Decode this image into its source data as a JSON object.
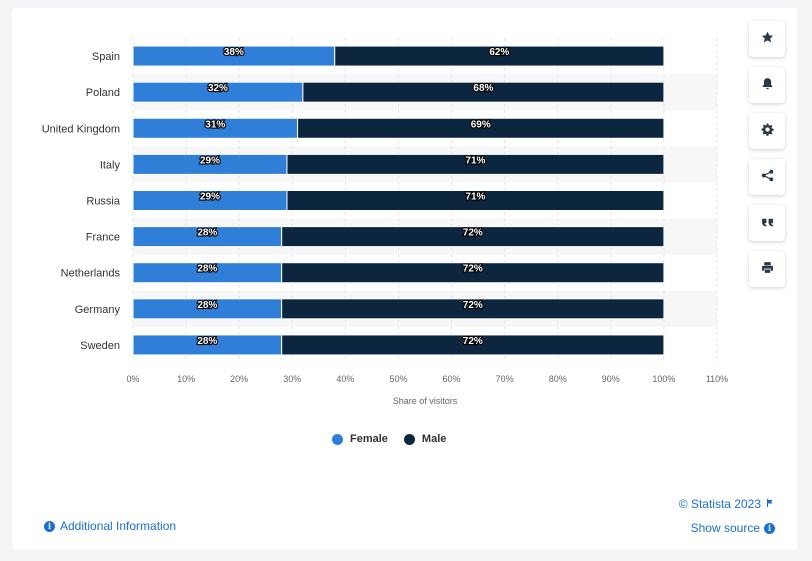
{
  "chart_data": {
    "type": "bar",
    "orientation": "horizontal",
    "stacked": true,
    "categories": [
      "Spain",
      "Poland",
      "United Kingdom",
      "Italy",
      "Russia",
      "France",
      "Netherlands",
      "Germany",
      "Sweden"
    ],
    "series": [
      {
        "name": "Female",
        "color": "#2f7ed8",
        "values": [
          38,
          32,
          31,
          29,
          29,
          28,
          28,
          28,
          28
        ]
      },
      {
        "name": "Male",
        "color": "#0d2640",
        "values": [
          62,
          68,
          69,
          71,
          71,
          72,
          72,
          72,
          72
        ]
      }
    ],
    "value_suffix": "%",
    "xlabel": "Share of visitors",
    "xlim": [
      0,
      110
    ],
    "xticks": [
      "0%",
      "10%",
      "20%",
      "30%",
      "40%",
      "50%",
      "60%",
      "70%",
      "80%",
      "90%",
      "100%",
      "110%"
    ],
    "grid": true,
    "legend_position": "bottom-center"
  },
  "toolbar": {
    "icons": [
      "star-icon",
      "bell-icon",
      "gear-icon",
      "share-icon",
      "quote-icon",
      "print-icon"
    ]
  },
  "footer": {
    "credit": "© Statista 2023",
    "show_source": "Show source",
    "additional_info": "Additional Information"
  }
}
